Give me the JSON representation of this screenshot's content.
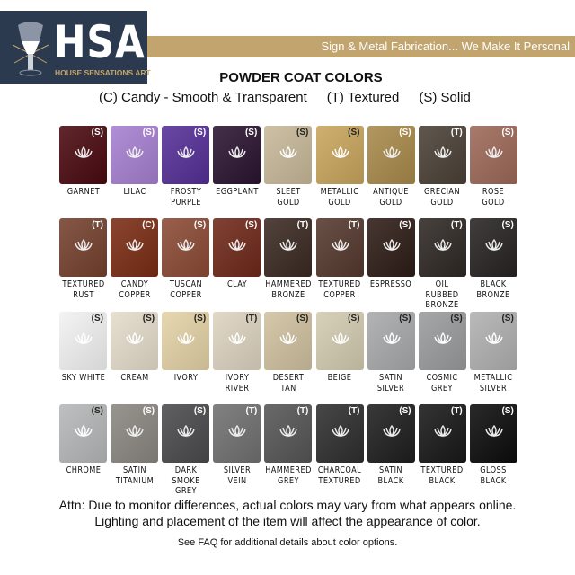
{
  "header": {
    "logo_text": "HSA",
    "logo_subtext": "HOUSE SENSATIONS ART",
    "tagline": "Sign & Metal Fabrication... We Make It Personal"
  },
  "title": "POWDER COAT COLORS",
  "legend": [
    "(C) Candy - Smooth & Transparent",
    "(T) Textured",
    "(S) Solid"
  ],
  "rows": [
    [
      {
        "name": "GARNET",
        "type": "(S)",
        "color": "#4a0a10"
      },
      {
        "name": "LILAC",
        "type": "(S)",
        "color": "#a67fd0"
      },
      {
        "name": "FROSTY PURPLE",
        "type": "(S)",
        "color": "#542f96"
      },
      {
        "name": "EGGPLANT",
        "type": "(S)",
        "color": "#2a1430"
      },
      {
        "name": "SLEET GOLD",
        "type": "(S)",
        "color": "#c7b898"
      },
      {
        "name": "METALLIC GOLD",
        "type": "(S)",
        "color": "#c8a55c"
      },
      {
        "name": "ANTIQUE GOLD",
        "type": "(S)",
        "color": "#a8894a"
      },
      {
        "name": "GRECIAN GOLD",
        "type": "(T)",
        "color": "#4a4036"
      },
      {
        "name": "ROSE GOLD",
        "type": "(S)",
        "color": "#9c6858"
      }
    ],
    [
      {
        "name": "TEXTURED RUST",
        "type": "(T)",
        "color": "#74402e"
      },
      {
        "name": "CANDY COPPER",
        "type": "(C)",
        "color": "#7a2c14"
      },
      {
        "name": "TUSCAN COPPER",
        "type": "(S)",
        "color": "#8a4a34"
      },
      {
        "name": "CLAY",
        "type": "(S)",
        "color": "#6e2818"
      },
      {
        "name": "HAMMERED BRONZE",
        "type": "(T)",
        "color": "#3a2a22"
      },
      {
        "name": "TEXTURED COPPER",
        "type": "(T)",
        "color": "#54382e"
      },
      {
        "name": "ESPRESSO",
        "type": "(S)",
        "color": "#2e1c16"
      },
      {
        "name": "OIL RUBBED BRONZE",
        "type": "(T)",
        "color": "#2e2824"
      },
      {
        "name": "BLACK BRONZE",
        "type": "(S)",
        "color": "#262322"
      }
    ],
    [
      {
        "name": "SKY WHITE",
        "type": "(S)",
        "color": "#f2f2f2"
      },
      {
        "name": "CREAM",
        "type": "(S)",
        "color": "#e4dccb"
      },
      {
        "name": "IVORY",
        "type": "(S)",
        "color": "#e3d2a6"
      },
      {
        "name": "IVORY RIVER",
        "type": "(T)",
        "color": "#ddd3bf"
      },
      {
        "name": "DESERT TAN",
        "type": "(S)",
        "color": "#d0c09e"
      },
      {
        "name": "BEIGE",
        "type": "(S)",
        "color": "#d3cbb0"
      },
      {
        "name": "SATIN SILVER",
        "type": "(S)",
        "color": "#a8a9aa"
      },
      {
        "name": "COSMIC GREY",
        "type": "(S)",
        "color": "#9a9b9c"
      },
      {
        "name": "METALLIC SILVER",
        "type": "(S)",
        "color": "#b0b0b0"
      }
    ],
    [
      {
        "name": "CHROME",
        "type": "(S)",
        "color": "#b6b7b8"
      },
      {
        "name": "SATIN TITANIUM",
        "type": "(S)",
        "color": "#8a8680"
      },
      {
        "name": "DARK SMOKE GREY",
        "type": "(S)",
        "color": "#4a4a4c"
      },
      {
        "name": "SILVER VEIN",
        "type": "(T)",
        "color": "#707070"
      },
      {
        "name": "HAMMERED GREY",
        "type": "(T)",
        "color": "#555555"
      },
      {
        "name": "CHARCOAL TEXTURED",
        "type": "(T)",
        "color": "#2e2e2e"
      },
      {
        "name": "SATIN BLACK",
        "type": "(S)",
        "color": "#1e1e1e"
      },
      {
        "name": "TEXTURED BLACK",
        "type": "(T)",
        "color": "#181818"
      },
      {
        "name": "GLOSS BLACK",
        "type": "(S)",
        "color": "#0c0c0c"
      }
    ]
  ],
  "footer": {
    "line1": "Attn: Due to monitor differences, actual colors may vary from what appears online.",
    "line2": "Lighting and placement of the item will affect the appearance of color.",
    "faq": "See FAQ for additional details about color options."
  }
}
